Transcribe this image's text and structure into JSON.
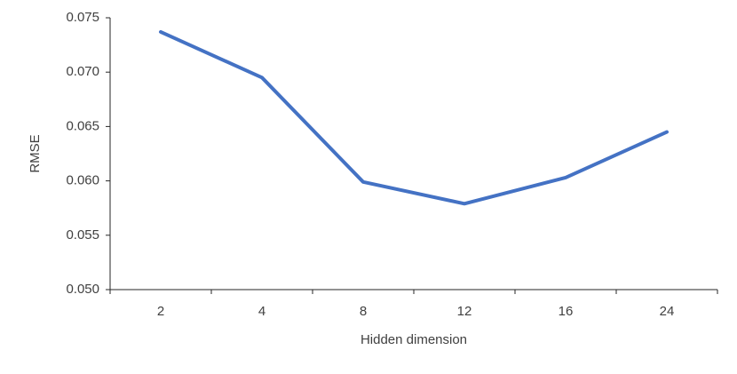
{
  "chart_data": {
    "type": "line",
    "x_label": "Hidden dimension",
    "y_label": "RMSE",
    "categories": [
      "2",
      "4",
      "8",
      "12",
      "16",
      "24"
    ],
    "values": [
      0.0737,
      0.0695,
      0.0599,
      0.0579,
      0.0603,
      0.0645
    ],
    "color": "#4472c4",
    "ylim": [
      0.05,
      0.075
    ],
    "yticks": [
      {
        "value": 0.05,
        "label": "0.050"
      },
      0.055,
      {
        "value": 0.06,
        "label": "0.060"
      },
      0.065,
      {
        "value": 0.07,
        "label": "0.070"
      },
      0.075
    ],
    "grid": false
  }
}
